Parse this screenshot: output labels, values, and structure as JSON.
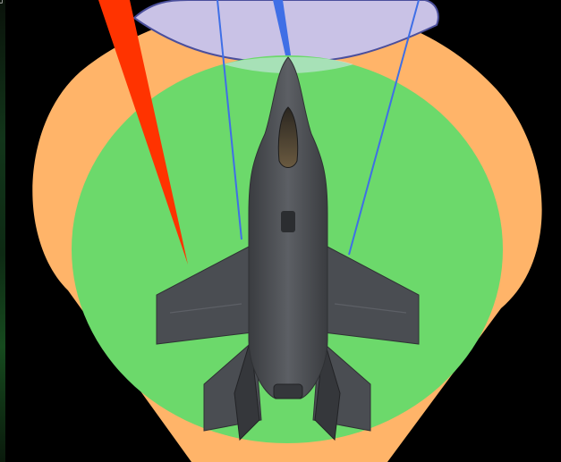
{
  "scene": {
    "background_color": "#000000",
    "colors": {
      "outer_zone": "#ffb469",
      "inner_zone": "#6cd96b",
      "front_arc": "#c9c2e6",
      "front_arc_outline": "#4b4f9c",
      "sensor_lines": "#3f6fe6",
      "pointer": "#ff3300",
      "aircraft_body": "#4a4d52"
    },
    "icons": {
      "aircraft": "fighter-jet-topdown-icon",
      "pointer": "heading-pointer-icon"
    }
  }
}
